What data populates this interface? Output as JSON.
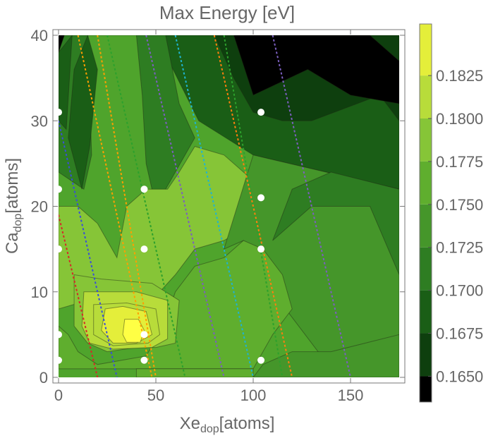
{
  "chart_data": {
    "type": "heatmap",
    "subtype": "contour",
    "title": "Max Energy [eV]",
    "xlabel": {
      "main": "Xe",
      "sub": "dop",
      "unit": "[atoms]"
    },
    "ylabel": {
      "main": "Ca",
      "sub": "dop",
      "unit": "[atoms]"
    },
    "xlim": [
      0,
      175
    ],
    "ylim": [
      0,
      40
    ],
    "x_ticks": [
      0,
      50,
      100,
      150
    ],
    "y_ticks": [
      0,
      10,
      20,
      30,
      40
    ],
    "colorbar": {
      "min": 0.1635,
      "max": 0.1855,
      "ticks": [
        "0.1650",
        "0.1675",
        "0.1700",
        "0.1725",
        "0.1750",
        "0.1775",
        "0.1800",
        "0.1825"
      ],
      "colors": [
        "#000000",
        "#0e3f0e",
        "#1a5e16",
        "#2e7d22",
        "#45962a",
        "#5fae2e",
        "#86c537",
        "#b8dc3a",
        "#e4ee3a",
        "#ffff44"
      ]
    },
    "sample_points": [
      {
        "x": 0,
        "y": 2
      },
      {
        "x": 0,
        "y": 5
      },
      {
        "x": 0,
        "y": 15
      },
      {
        "x": 0,
        "y": 22
      },
      {
        "x": 0,
        "y": 31
      },
      {
        "x": 44,
        "y": 2
      },
      {
        "x": 44,
        "y": 5
      },
      {
        "x": 44,
        "y": 15
      },
      {
        "x": 44,
        "y": 22
      },
      {
        "x": 104,
        "y": 2
      },
      {
        "x": 104,
        "y": 15
      },
      {
        "x": 104,
        "y": 21
      },
      {
        "x": 104,
        "y": 31
      }
    ],
    "contour_regions": [
      {
        "level": 2,
        "points": [
          [
            10,
            40
          ],
          [
            175,
            40
          ],
          [
            175,
            22
          ],
          [
            100,
            26
          ],
          [
            72,
            30
          ],
          [
            50,
            40
          ]
        ]
      },
      {
        "level": 3,
        "points": [
          [
            0,
            40
          ],
          [
            15,
            40
          ],
          [
            17,
            26
          ],
          [
            13,
            22
          ],
          [
            0,
            24
          ]
        ]
      },
      {
        "level": 1,
        "points": [
          [
            72,
            40
          ],
          [
            175,
            40
          ],
          [
            175,
            30
          ],
          [
            165,
            33
          ],
          [
            130,
            30
          ],
          [
            115,
            30
          ],
          [
            100,
            31
          ],
          [
            90,
            35
          ],
          [
            80,
            40
          ]
        ]
      },
      {
        "level": 0,
        "points": [
          [
            90,
            40
          ],
          [
            160,
            40
          ],
          [
            175,
            37
          ],
          [
            175,
            32
          ],
          [
            150,
            33
          ],
          [
            128,
            36
          ],
          [
            100,
            33
          ]
        ]
      },
      {
        "level": 2,
        "points": [
          [
            0,
            38
          ],
          [
            7,
            40
          ],
          [
            4,
            29
          ],
          [
            0,
            30
          ]
        ]
      },
      {
        "level": 0,
        "points": [
          [
            0,
            40
          ],
          [
            3,
            40
          ],
          [
            0,
            38
          ]
        ]
      },
      {
        "level": 2,
        "points": [
          [
            5,
            28
          ],
          [
            12,
            22
          ],
          [
            16,
            27
          ],
          [
            20,
            36
          ],
          [
            15,
            40
          ],
          [
            8,
            36
          ]
        ]
      },
      {
        "level": 3,
        "points": [
          [
            40,
            40
          ],
          [
            55,
            40
          ],
          [
            62,
            32
          ],
          [
            70,
            28
          ],
          [
            60,
            24
          ],
          [
            55,
            22
          ],
          [
            50,
            20
          ],
          [
            45,
            25
          ],
          [
            43,
            33
          ]
        ]
      },
      {
        "level": 6,
        "points": [
          [
            0,
            20
          ],
          [
            0,
            8
          ],
          [
            15,
            9
          ],
          [
            40,
            9
          ],
          [
            52,
            10
          ],
          [
            60,
            12
          ],
          [
            70,
            15
          ],
          [
            85,
            16
          ],
          [
            100,
            18
          ],
          [
            100,
            23
          ],
          [
            85,
            26
          ],
          [
            70,
            27
          ],
          [
            62,
            24
          ],
          [
            56,
            22
          ],
          [
            45,
            22
          ],
          [
            35,
            20
          ],
          [
            30,
            14
          ],
          [
            20,
            18
          ],
          [
            10,
            20
          ]
        ]
      },
      {
        "level": 4,
        "points": [
          [
            100,
            26
          ],
          [
            175,
            22
          ],
          [
            175,
            1
          ],
          [
            140,
            1
          ],
          [
            120,
            7
          ],
          [
            110,
            10
          ],
          [
            100,
            15
          ],
          [
            95,
            16
          ],
          [
            85,
            15
          ]
        ]
      },
      {
        "level": 3,
        "points": [
          [
            110,
            16
          ],
          [
            130,
            20
          ],
          [
            160,
            20
          ],
          [
            175,
            12
          ],
          [
            175,
            22
          ],
          [
            140,
            24
          ],
          [
            120,
            22
          ]
        ]
      },
      {
        "level": 5,
        "points": [
          [
            0,
            1
          ],
          [
            100,
            1
          ],
          [
            110,
            5
          ],
          [
            120,
            8
          ],
          [
            115,
            12
          ],
          [
            105,
            15
          ],
          [
            95,
            16
          ],
          [
            85,
            14
          ],
          [
            70,
            13
          ],
          [
            60,
            10
          ],
          [
            54,
            6
          ],
          [
            45,
            2.5
          ],
          [
            20,
            1.5
          ],
          [
            10,
            3
          ],
          [
            5,
            5
          ],
          [
            0,
            6
          ]
        ]
      },
      {
        "level": 6,
        "points": [
          [
            8,
            12
          ],
          [
            22,
            11.5
          ],
          [
            48,
            11
          ],
          [
            62,
            9
          ],
          [
            60,
            4
          ],
          [
            50,
            3.5
          ],
          [
            40,
            3.5
          ],
          [
            25,
            3
          ],
          [
            15,
            4
          ],
          [
            8,
            6
          ]
        ]
      },
      {
        "level": 7,
        "points": [
          [
            13,
            10
          ],
          [
            40,
            10
          ],
          [
            56,
            9
          ],
          [
            56,
            4.5
          ],
          [
            48,
            3.5
          ],
          [
            28,
            3.3
          ],
          [
            16,
            4
          ],
          [
            12,
            6
          ]
        ]
      },
      {
        "level": 7,
        "points": [
          [
            18,
            8.5
          ],
          [
            35,
            8.7
          ],
          [
            50,
            8
          ],
          [
            52,
            5
          ],
          [
            46,
            4
          ],
          [
            28,
            3.7
          ],
          [
            18,
            5
          ]
        ]
      },
      {
        "level": 8,
        "points": [
          [
            24,
            8
          ],
          [
            33,
            8.3
          ],
          [
            45,
            7.7
          ],
          [
            48,
            5
          ],
          [
            40,
            4
          ],
          [
            28,
            4
          ],
          [
            22,
            5.5
          ]
        ]
      },
      {
        "level": 9,
        "points": [
          [
            34,
            6.8
          ],
          [
            41,
            6.8
          ],
          [
            44,
            5.5
          ],
          [
            42,
            4.1
          ],
          [
            35,
            4.1
          ],
          [
            33,
            5
          ]
        ]
      },
      {
        "level": 5,
        "points": [
          [
            40,
            1
          ],
          [
            100,
            1
          ],
          [
            100,
            0
          ],
          [
            40,
            0
          ]
        ]
      },
      {
        "level": 4,
        "points": [
          [
            100,
            0
          ],
          [
            175,
            0
          ],
          [
            175,
            5
          ],
          [
            140,
            3
          ],
          [
            120,
            3
          ],
          [
            105,
            1.5
          ]
        ]
      }
    ],
    "guide_lines": [
      {
        "color": "#d62728",
        "x_top": 0,
        "x_bottom": 20,
        "y_top": 19
      },
      {
        "color": "#3a4fd6",
        "x_top": 0,
        "x_bottom": 30,
        "y_top": 30
      },
      {
        "color": "#ff9f00",
        "x_top": 10,
        "x_bottom": 48,
        "y_top": 40
      },
      {
        "color": "#ff9f00",
        "x_top": 20,
        "x_bottom": 50,
        "y_top": 40
      },
      {
        "color": "#2ca02c",
        "x_top": 25,
        "x_bottom": 65,
        "y_top": 40
      },
      {
        "color": "#7b5fbf",
        "x_top": 45,
        "x_bottom": 85,
        "y_top": 40
      },
      {
        "color": "#1fb4cf",
        "x_top": 60,
        "x_bottom": 100,
        "y_top": 40
      },
      {
        "color": "#2ca02c",
        "x_top": 85,
        "x_bottom": 115,
        "y_top": 40
      },
      {
        "color": "#ff7f0e",
        "x_top": 80,
        "x_bottom": 120,
        "y_top": 40
      },
      {
        "color": "#7b5fbf",
        "x_top": 110,
        "x_bottom": 150,
        "y_top": 40
      }
    ],
    "grid": false,
    "legend": "colorbar-right"
  }
}
